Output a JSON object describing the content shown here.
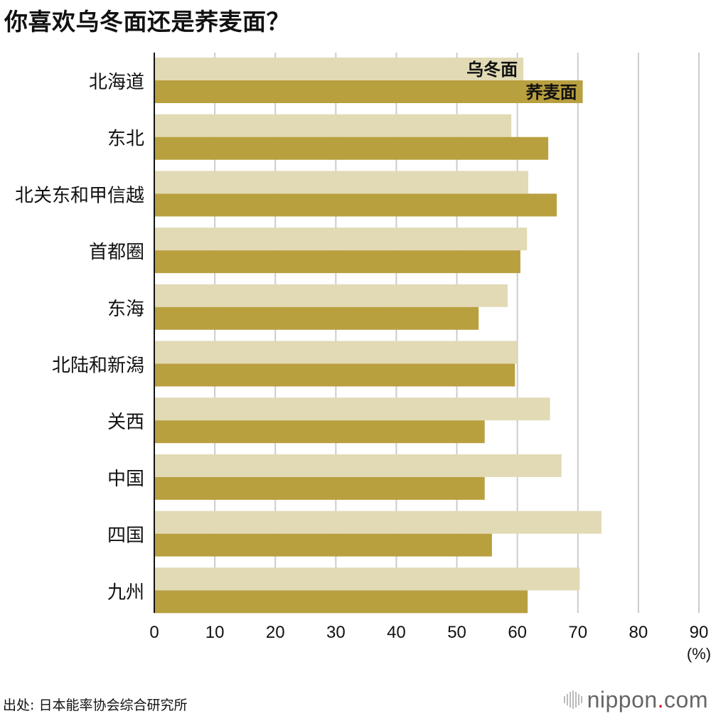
{
  "title": "你喜欢乌冬面还是荞麦面？",
  "source": "出处: 日本能率协会综合研究所",
  "logo": {
    "name": "nippon",
    "dot": ".",
    "suffix": "com"
  },
  "colors": {
    "udon": "#e2dab5",
    "soba": "#b9a03f",
    "grid": "#cccccc",
    "axis": "#111111"
  },
  "chart_data": {
    "type": "bar",
    "orientation": "horizontal",
    "title": "你喜欢乌冬面还是荞麦面？",
    "xlabel": "",
    "ylabel": "",
    "unit": "(%)",
    "xlim": [
      0,
      90
    ],
    "ticks": [
      0,
      10,
      20,
      30,
      40,
      50,
      60,
      70,
      80,
      90
    ],
    "grid": true,
    "legend": "in-chart labels on first category",
    "categories": [
      "北海道",
      "东北",
      "北关东和甲信越",
      "首都圈",
      "东海",
      "北陆和新潟",
      "关西",
      "中国",
      "四国",
      "九州"
    ],
    "series": [
      {
        "name": "乌冬面",
        "color": "#e2dab5",
        "values": [
          61.0,
          59.0,
          61.8,
          61.6,
          58.4,
          60.0,
          65.4,
          67.3,
          73.9,
          70.3
        ]
      },
      {
        "name": "荞麦面",
        "color": "#b9a03f",
        "values": [
          70.8,
          65.1,
          66.5,
          60.5,
          53.6,
          59.6,
          54.6,
          54.6,
          55.8,
          61.7
        ]
      }
    ]
  }
}
